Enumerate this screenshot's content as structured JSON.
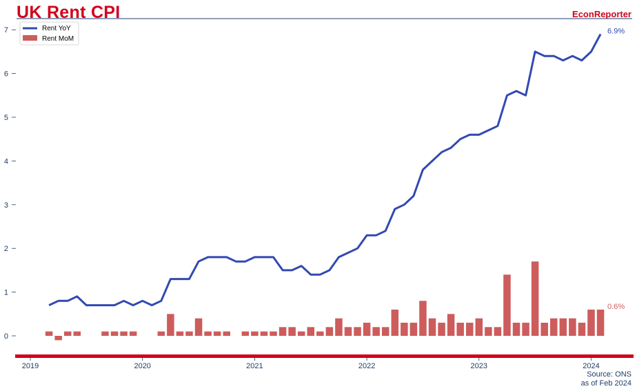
{
  "header": {
    "title": "UK Rent CPI",
    "brand": "EconReporter"
  },
  "footer": {
    "source": "Source: ONS",
    "as_of": "as of Feb 2024"
  },
  "colors": {
    "title": "#d0021b",
    "yoy_line": "#3249b1",
    "mom_bar": "#cd5c5c",
    "axis_text": "#1f3b6b",
    "bottom_band": "#d0021b"
  },
  "chart_data": {
    "type": "line",
    "title": "UK Rent CPI",
    "xlabel": "",
    "ylabel": "",
    "ylim": [
      -0.2,
      7.2
    ],
    "xlim": [
      "2018-11",
      "2024-05"
    ],
    "y_ticks": [
      0,
      1,
      2,
      3,
      4,
      5,
      6,
      7
    ],
    "x_ticks": [
      "2019",
      "2020",
      "2021",
      "2022",
      "2023",
      "2024"
    ],
    "grid": false,
    "legend_position": "top-left",
    "x": [
      "2019-03",
      "2019-04",
      "2019-05",
      "2019-06",
      "2019-07",
      "2019-08",
      "2019-09",
      "2019-10",
      "2019-11",
      "2019-12",
      "2020-01",
      "2020-02",
      "2020-03",
      "2020-04",
      "2020-05",
      "2020-06",
      "2020-07",
      "2020-08",
      "2020-09",
      "2020-10",
      "2020-11",
      "2020-12",
      "2021-01",
      "2021-02",
      "2021-03",
      "2021-04",
      "2021-05",
      "2021-06",
      "2021-07",
      "2021-08",
      "2021-09",
      "2021-10",
      "2021-11",
      "2021-12",
      "2022-01",
      "2022-02",
      "2022-03",
      "2022-04",
      "2022-05",
      "2022-06",
      "2022-07",
      "2022-08",
      "2022-09",
      "2022-10",
      "2022-11",
      "2022-12",
      "2023-01",
      "2023-02",
      "2023-03",
      "2023-04",
      "2023-05",
      "2023-06",
      "2023-07",
      "2023-08",
      "2023-09",
      "2023-10",
      "2023-11",
      "2023-12",
      "2024-01",
      "2024-02"
    ],
    "series": [
      {
        "name": "Rent YoY",
        "kind": "line",
        "values": [
          0.7,
          0.8,
          0.8,
          0.9,
          0.7,
          0.7,
          0.7,
          0.7,
          0.8,
          0.7,
          0.8,
          0.7,
          0.8,
          1.3,
          1.3,
          1.3,
          1.7,
          1.8,
          1.8,
          1.8,
          1.7,
          1.7,
          1.8,
          1.8,
          1.8,
          1.5,
          1.5,
          1.6,
          1.4,
          1.4,
          1.5,
          1.8,
          1.9,
          2.0,
          2.3,
          2.3,
          2.4,
          2.9,
          3.0,
          3.2,
          3.8,
          4.0,
          4.2,
          4.3,
          4.5,
          4.6,
          4.6,
          4.7,
          4.8,
          5.5,
          5.6,
          5.5,
          6.5,
          6.4,
          6.4,
          6.3,
          6.4,
          6.3,
          6.5,
          6.9
        ],
        "end_label": "6.9%"
      },
      {
        "name": "Rent MoM",
        "kind": "bar",
        "values": [
          0.1,
          -0.1,
          0.1,
          0.1,
          0.0,
          0.0,
          0.1,
          0.1,
          0.1,
          0.1,
          0.0,
          0.0,
          0.1,
          0.5,
          0.1,
          0.1,
          0.4,
          0.1,
          0.1,
          0.1,
          0.0,
          0.1,
          0.1,
          0.1,
          0.1,
          0.2,
          0.2,
          0.1,
          0.2,
          0.1,
          0.2,
          0.4,
          0.2,
          0.2,
          0.3,
          0.2,
          0.2,
          0.6,
          0.3,
          0.3,
          0.8,
          0.4,
          0.3,
          0.5,
          0.3,
          0.3,
          0.4,
          0.2,
          0.2,
          1.4,
          0.3,
          0.3,
          1.7,
          0.3,
          0.4,
          0.4,
          0.4,
          0.3,
          0.6,
          0.6
        ],
        "end_label": "0.6%"
      }
    ]
  }
}
